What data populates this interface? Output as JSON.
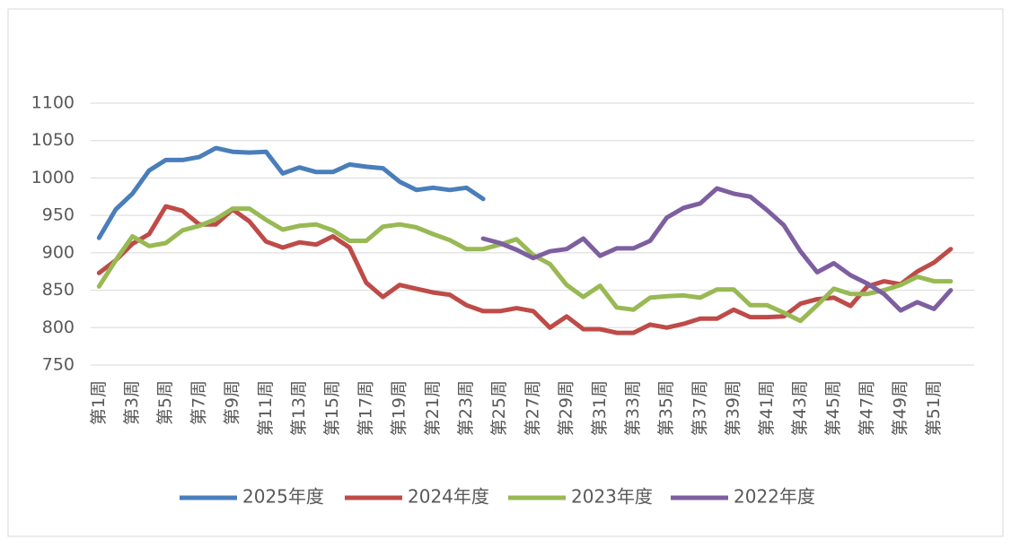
{
  "chart_data": {
    "type": "line",
    "categories": [
      "第1周",
      null,
      "第3周",
      null,
      "第5周",
      null,
      "第7周",
      null,
      "第9周",
      null,
      "第11周",
      null,
      "第13周",
      null,
      "第15周",
      null,
      "第17周",
      null,
      "第19周",
      null,
      "第21周",
      null,
      "第23周",
      null,
      "第25周",
      null,
      "第27周",
      null,
      "第29周",
      null,
      "第31周",
      null,
      "第33周",
      null,
      "第35周",
      null,
      "第37周",
      null,
      "第39周",
      null,
      "第41周",
      null,
      "第43周",
      null,
      "第45周",
      null,
      "第47周",
      null,
      "第49周",
      null,
      "第51周",
      null
    ],
    "series": [
      {
        "name": "2025年度",
        "color": "#4a7ebb",
        "values": [
          920,
          958,
          979,
          1010,
          1024,
          1024,
          1028,
          1040,
          1035,
          1034,
          1035,
          1006,
          1014,
          1008,
          1008,
          1018,
          1015,
          1013,
          995,
          984,
          987,
          984,
          987,
          972,
          null,
          null,
          null,
          null,
          null,
          null,
          null,
          null,
          null,
          null,
          null,
          null,
          null,
          null,
          null,
          null,
          null,
          null,
          null,
          null,
          null,
          null,
          null,
          null,
          null,
          null,
          null,
          null
        ]
      },
      {
        "name": "2024年度",
        "color": "#be4b48",
        "values": [
          873,
          890,
          912,
          925,
          962,
          956,
          938,
          938,
          958,
          942,
          915,
          907,
          914,
          911,
          922,
          907,
          860,
          841,
          857,
          852,
          847,
          844,
          830,
          822,
          822,
          826,
          822,
          800,
          815,
          798,
          798,
          793,
          793,
          804,
          800,
          805,
          812,
          812,
          824,
          814,
          814,
          815,
          832,
          838,
          840,
          829,
          855,
          862,
          858,
          875,
          887,
          905
        ]
      },
      {
        "name": "2023年度",
        "color": "#98b954",
        "values": [
          855,
          890,
          922,
          909,
          913,
          930,
          936,
          945,
          959,
          959,
          944,
          931,
          936,
          938,
          930,
          916,
          916,
          935,
          938,
          934,
          925,
          917,
          905,
          905,
          911,
          918,
          897,
          885,
          857,
          841,
          856,
          827,
          824,
          840,
          842,
          843,
          840,
          851,
          851,
          830,
          830,
          820,
          809,
          830,
          852,
          845,
          845,
          850,
          857,
          868,
          862,
          862
        ]
      },
      {
        "name": "2022年度",
        "color": "#7d5fa0",
        "values": [
          null,
          null,
          null,
          null,
          null,
          null,
          null,
          null,
          null,
          null,
          null,
          null,
          null,
          null,
          null,
          null,
          null,
          null,
          null,
          null,
          null,
          null,
          null,
          919,
          913,
          904,
          893,
          902,
          905,
          919,
          896,
          906,
          906,
          916,
          947,
          960,
          966,
          986,
          979,
          975,
          957,
          937,
          902,
          874,
          886,
          870,
          859,
          845,
          823,
          834,
          825,
          850
        ]
      }
    ],
    "ylim": [
      750,
      1100
    ],
    "yticks": [
      750,
      800,
      850,
      900,
      950,
      1000,
      1050,
      1100
    ],
    "grid": true,
    "legend": "bottom"
  }
}
